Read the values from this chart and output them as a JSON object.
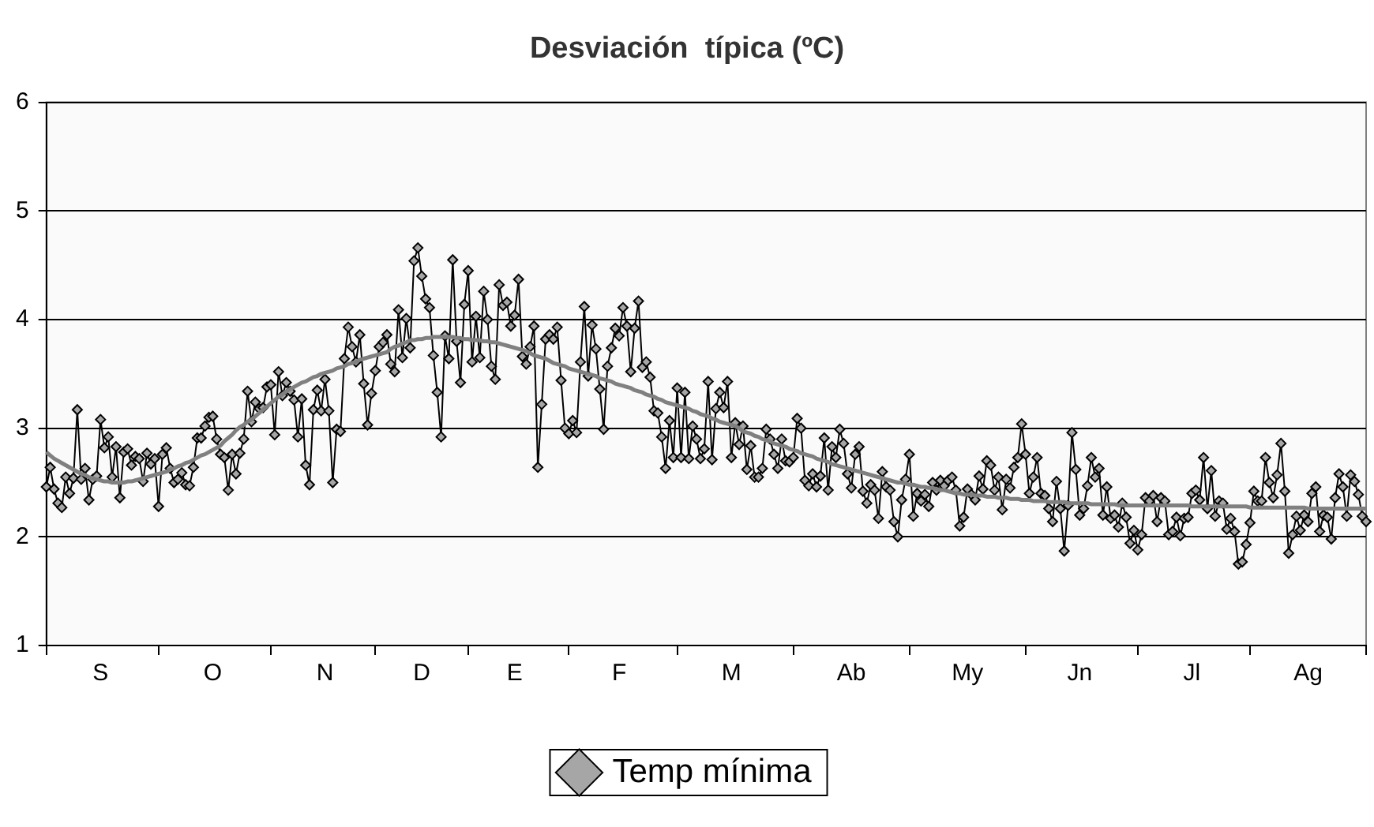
{
  "chart_data": {
    "type": "line",
    "title": "Desviación  típica (ºC)",
    "categories": [
      null,
      null,
      null,
      null,
      null,
      null,
      null,
      null,
      null,
      null,
      null,
      null,
      null,
      null,
      "S",
      null,
      null,
      null,
      null,
      null,
      null,
      null,
      null,
      null,
      null,
      null,
      null,
      null,
      null,
      null,
      null,
      null,
      null,
      null,
      null,
      null,
      null,
      null,
      null,
      null,
      null,
      null,
      null,
      "O",
      null,
      null,
      null,
      null,
      null,
      null,
      null,
      null,
      null,
      null,
      null,
      null,
      null,
      null,
      null,
      null,
      null,
      null,
      null,
      null,
      null,
      null,
      null,
      null,
      null,
      null,
      null,
      null,
      "N",
      null,
      null,
      null,
      null,
      null,
      null,
      null,
      null,
      null,
      null,
      null,
      null,
      null,
      null,
      null,
      null,
      null,
      null,
      null,
      null,
      null,
      null,
      null,
      null,
      "D",
      null,
      null,
      null,
      null,
      null,
      null,
      null,
      null,
      null,
      null,
      null,
      null,
      null,
      null,
      null,
      null,
      null,
      null,
      null,
      null,
      null,
      null,
      null,
      "E",
      null,
      null,
      null,
      null,
      null,
      null,
      null,
      null,
      null,
      null,
      null,
      null,
      null,
      null,
      null,
      null,
      null,
      null,
      null,
      null,
      null,
      null,
      null,
      null,
      null,
      null,
      "F",
      null,
      null,
      null,
      null,
      null,
      null,
      null,
      null,
      null,
      null,
      null,
      null,
      null,
      null,
      null,
      null,
      null,
      null,
      null,
      null,
      null,
      null,
      null,
      null,
      null,
      null,
      null,
      null,
      "M",
      null,
      null,
      null,
      null,
      null,
      null,
      null,
      null,
      null,
      null,
      null,
      null,
      null,
      null,
      null,
      null,
      null,
      null,
      null,
      null,
      null,
      null,
      null,
      null,
      null,
      null,
      null,
      null,
      null,
      null,
      "Ab",
      null,
      null,
      null,
      null,
      null,
      null,
      null,
      null,
      null,
      null,
      null,
      null,
      null,
      null,
      null,
      null,
      null,
      null,
      null,
      null,
      null,
      null,
      null,
      null,
      null,
      null,
      null,
      null,
      null,
      "My",
      null,
      null,
      null,
      null,
      null,
      null,
      null,
      null,
      null,
      null,
      null,
      null,
      null,
      null,
      null,
      null,
      null,
      null,
      null,
      null,
      null,
      null,
      null,
      null,
      null,
      null,
      null,
      null,
      "Jn",
      null,
      null,
      null,
      null,
      null,
      null,
      null,
      null,
      null,
      null,
      null,
      null,
      null,
      null,
      null,
      null,
      null,
      null,
      null,
      null,
      null,
      null,
      null,
      null,
      null,
      null,
      null,
      null,
      "Jl",
      null,
      null,
      null,
      null,
      null,
      null,
      null,
      null,
      null,
      null,
      null,
      null,
      null,
      null,
      null,
      null,
      null,
      null,
      null,
      null,
      null,
      null,
      null,
      null,
      null,
      null,
      null,
      null,
      null,
      "Ag",
      null,
      null,
      null,
      null,
      null,
      null,
      null,
      null,
      null,
      null,
      null,
      null,
      null,
      null,
      null
    ],
    "ylim": [
      1,
      6
    ],
    "yticks": [
      1,
      2,
      3,
      4,
      5,
      6
    ],
    "grid": "y",
    "legend": "bottom",
    "marker": "diamond",
    "line_style": "solid",
    "series": [
      {
        "name": "Temp mínima",
        "color": "#000000",
        "values": [
          2.46,
          2.64,
          2.44,
          2.31,
          2.27,
          2.55,
          2.4,
          2.54,
          3.17,
          2.53,
          2.63,
          2.34,
          2.53,
          2.56,
          3.08,
          2.82,
          2.92,
          2.55,
          2.83,
          2.36,
          2.78,
          2.81,
          2.66,
          2.74,
          2.72,
          2.51,
          2.77,
          2.67,
          2.72,
          2.28,
          2.76,
          2.82,
          2.63,
          2.5,
          2.53,
          2.59,
          2.48,
          2.47,
          2.64,
          2.91,
          2.91,
          3.02,
          3.1,
          3.11,
          2.9,
          2.76,
          2.73,
          2.43,
          2.76,
          2.58,
          2.77,
          2.9,
          3.34,
          3.06,
          3.24,
          3.18,
          3.19,
          3.38,
          3.4,
          2.94,
          3.52,
          3.3,
          3.42,
          3.34,
          3.26,
          2.92,
          3.27,
          2.66,
          2.48,
          3.17,
          3.35,
          3.16,
          3.45,
          3.16,
          2.5,
          2.99,
          2.97,
          3.64,
          3.93,
          3.75,
          3.61,
          3.86,
          3.41,
          3.03,
          3.32,
          3.53,
          3.75,
          3.79,
          3.86,
          3.59,
          3.52,
          4.09,
          3.65,
          4.01,
          3.74,
          4.54,
          4.66,
          4.4,
          4.19,
          4.11,
          3.67,
          3.33,
          2.92,
          3.85,
          3.64,
          4.55,
          3.8,
          3.42,
          4.14,
          4.45,
          3.61,
          4.03,
          3.65,
          4.26,
          4,
          3.57,
          3.45,
          4.32,
          4.13,
          4.16,
          3.94,
          4.04,
          4.37,
          3.66,
          3.59,
          3.75,
          3.94,
          2.64,
          3.22,
          3.82,
          3.86,
          3.82,
          3.93,
          3.44,
          3,
          2.95,
          3.07,
          2.96,
          3.61,
          4.12,
          3.48,
          3.95,
          3.73,
          3.36,
          2.99,
          3.57,
          3.74,
          3.92,
          3.85,
          4.11,
          3.94,
          3.52,
          3.92,
          4.17,
          3.56,
          3.61,
          3.47,
          3.16,
          3.14,
          2.92,
          2.63,
          3.07,
          2.73,
          3.37,
          2.73,
          3.33,
          2.72,
          3.02,
          2.9,
          2.72,
          2.81,
          3.43,
          2.71,
          3.18,
          3.33,
          3.19,
          3.43,
          2.73,
          3.05,
          2.85,
          3.02,
          2.62,
          2.84,
          2.55,
          2.55,
          2.63,
          2.99,
          2.9,
          2.76,
          2.63,
          2.9,
          2.7,
          2.69,
          2.73,
          3.09,
          3,
          2.52,
          2.47,
          2.58,
          2.46,
          2.56,
          2.91,
          2.43,
          2.83,
          2.73,
          2.99,
          2.86,
          2.58,
          2.45,
          2.76,
          2.83,
          2.42,
          2.31,
          2.48,
          2.43,
          2.17,
          2.6,
          2.46,
          2.43,
          2.14,
          2,
          2.34,
          2.53,
          2.76,
          2.19,
          2.4,
          2.33,
          2.39,
          2.28,
          2.5,
          2.43,
          2.52,
          2.47,
          2.52,
          2.55,
          2.43,
          2.1,
          2.18,
          2.44,
          2.39,
          2.34,
          2.56,
          2.44,
          2.7,
          2.66,
          2.43,
          2.55,
          2.25,
          2.53,
          2.45,
          2.64,
          2.73,
          3.04,
          2.76,
          2.4,
          2.55,
          2.73,
          2.4,
          2.38,
          2.26,
          2.14,
          2.51,
          2.26,
          1.87,
          2.29,
          2.96,
          2.62,
          2.2,
          2.26,
          2.47,
          2.73,
          2.55,
          2.63,
          2.2,
          2.46,
          2.17,
          2.2,
          2.09,
          2.31,
          2.18,
          1.94,
          2.06,
          1.88,
          2.02,
          2.36,
          2.33,
          2.38,
          2.14,
          2.36,
          2.33,
          2.02,
          2.05,
          2.18,
          2.01,
          2.17,
          2.18,
          2.4,
          2.43,
          2.34,
          2.73,
          2.26,
          2.61,
          2.19,
          2.33,
          2.31,
          2.07,
          2.17,
          2.05,
          1.75,
          1.77,
          1.93,
          2.13,
          2.42,
          2.33,
          2.33,
          2.73,
          2.5,
          2.36,
          2.57,
          2.86,
          2.42,
          1.85,
          2.02,
          2.19,
          2.06,
          2.2,
          2.14,
          2.4,
          2.46,
          2.05,
          2.2,
          2.18,
          1.98,
          2.36,
          2.58,
          2.46,
          2.19,
          2.57,
          2.51,
          2.39,
          2.19,
          2.14
        ]
      },
      {
        "type": "line",
        "color": "#808080",
        "marker": "none",
        "values": [
          2.78,
          2.75,
          2.72,
          2.7,
          2.68,
          2.66,
          2.64,
          2.62,
          2.6,
          2.58,
          2.57,
          2.55,
          2.54,
          2.53,
          2.52,
          2.51,
          2.51,
          2.5,
          2.5,
          2.5,
          2.5,
          2.51,
          2.51,
          2.52,
          2.53,
          2.54,
          2.55,
          2.56,
          2.57,
          2.58,
          2.59,
          2.6,
          2.62,
          2.63,
          2.65,
          2.66,
          2.68,
          2.69,
          2.71,
          2.73,
          2.75,
          2.76,
          2.78,
          2.8,
          2.82,
          2.84,
          2.88,
          2.91,
          2.94,
          2.98,
          3.01,
          3.03,
          3.06,
          3.08,
          3.11,
          3.14,
          3.17,
          3.2,
          3.23,
          3.26,
          3.29,
          3.31,
          3.34,
          3.36,
          3.38,
          3.4,
          3.42,
          3.43,
          3.45,
          3.47,
          3.48,
          3.5,
          3.51,
          3.52,
          3.53,
          3.55,
          3.56,
          3.57,
          3.59,
          3.6,
          3.61,
          3.63,
          3.64,
          3.65,
          3.66,
          3.67,
          3.68,
          3.69,
          3.7,
          3.73,
          3.75,
          3.76,
          3.78,
          3.79,
          3.81,
          3.81,
          3.82,
          3.82,
          3.83,
          3.83,
          3.84,
          3.84,
          3.84,
          3.84,
          3.84,
          3.84,
          3.83,
          3.83,
          3.82,
          3.82,
          3.81,
          3.81,
          3.81,
          3.8,
          3.8,
          3.79,
          3.79,
          3.78,
          3.77,
          3.76,
          3.75,
          3.74,
          3.73,
          3.72,
          3.71,
          3.69,
          3.67,
          3.66,
          3.65,
          3.64,
          3.62,
          3.6,
          3.59,
          3.58,
          3.57,
          3.55,
          3.54,
          3.53,
          3.52,
          3.51,
          3.5,
          3.49,
          3.48,
          3.46,
          3.45,
          3.44,
          3.43,
          3.41,
          3.4,
          3.39,
          3.38,
          3.37,
          3.35,
          3.34,
          3.33,
          3.31,
          3.3,
          3.29,
          3.27,
          3.26,
          3.24,
          3.23,
          3.22,
          3.21,
          3.2,
          3.19,
          3.18,
          3.16,
          3.15,
          3.13,
          3.12,
          3.11,
          3.09,
          3.08,
          3.06,
          3.05,
          3.04,
          3.03,
          3.02,
          3.0,
          2.97,
          2.96,
          2.95,
          2.93,
          2.92,
          2.9,
          2.89,
          2.88,
          2.86,
          2.85,
          2.84,
          2.83,
          2.81,
          2.8,
          2.79,
          2.77,
          2.76,
          2.75,
          2.74,
          2.72,
          2.71,
          2.7,
          2.69,
          2.67,
          2.66,
          2.65,
          2.64,
          2.63,
          2.62,
          2.61,
          2.6,
          2.59,
          2.58,
          2.57,
          2.56,
          2.55,
          2.54,
          2.53,
          2.52,
          2.51,
          2.5,
          2.5,
          2.49,
          2.48,
          2.48,
          2.47,
          2.46,
          2.46,
          2.45,
          2.45,
          2.44,
          2.43,
          2.43,
          2.42,
          2.41,
          2.4,
          2.4,
          2.39,
          2.39,
          2.39,
          2.38,
          2.38,
          2.38,
          2.37,
          2.37,
          2.37,
          2.36,
          2.36,
          2.36,
          2.35,
          2.35,
          2.35,
          2.34,
          2.34,
          2.34,
          2.33,
          2.33,
          2.33,
          2.33,
          2.32,
          2.32,
          2.32,
          2.32,
          2.32,
          2.31,
          2.31,
          2.31,
          2.31,
          2.31,
          2.31,
          2.3,
          2.3,
          2.3,
          2.3,
          2.3,
          2.3,
          2.3,
          2.29,
          2.29,
          2.29,
          2.29,
          2.29,
          2.29,
          2.29,
          2.29,
          2.29,
          2.29,
          2.29,
          2.29,
          2.29,
          2.29,
          2.29,
          2.29,
          2.29,
          2.29,
          2.29,
          2.28,
          2.28,
          2.28,
          2.28,
          2.28,
          2.28,
          2.28,
          2.28,
          2.28,
          2.28,
          2.28,
          2.28,
          2.28,
          2.28,
          2.28,
          2.27,
          2.27,
          2.27,
          2.27,
          2.27,
          2.27,
          2.27,
          2.27,
          2.27,
          2.27,
          2.27,
          2.27,
          2.27,
          2.27,
          2.27,
          2.26,
          2.26,
          2.26,
          2.26,
          2.26,
          2.26,
          2.26,
          2.26,
          2.26,
          2.26,
          2.26,
          2.26,
          2.26,
          2.26,
          2.26,
          2.26
        ]
      }
    ]
  }
}
